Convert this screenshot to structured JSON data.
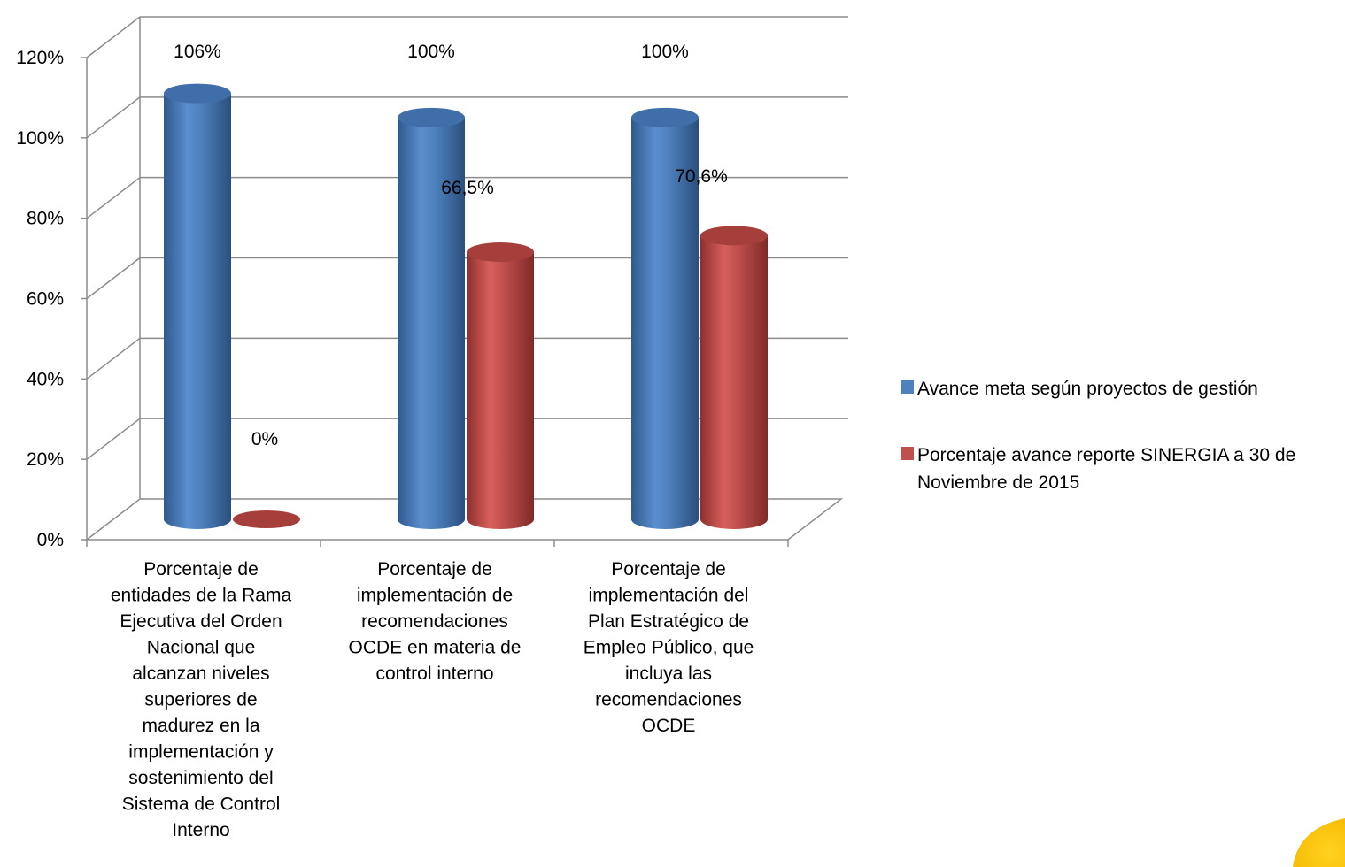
{
  "chart_data": {
    "type": "bar",
    "style": "3d-cylinder",
    "categories": [
      "Porcentaje de entidades de la Rama Ejecutiva del Orden Nacional que alcanzan niveles superiores de madurez en la implementación y sostenimiento del Sistema de Control Interno",
      "Porcentaje de implementación de recomendaciones OCDE en materia de control interno",
      "Porcentaje de implementación del Plan Estratégico de Empleo Público, que incluya las recomendaciones OCDE"
    ],
    "category_lines": [
      [
        "Porcentaje de",
        "entidades de la Rama",
        "Ejecutiva del Orden",
        "Nacional que",
        "alcanzan niveles",
        "superiores de",
        "madurez en la",
        "implementación y",
        "sostenimiento del",
        "Sistema de Control",
        "Interno"
      ],
      [
        "Porcentaje de",
        "implementación de",
        "recomendaciones",
        "OCDE en materia de",
        "control interno"
      ],
      [
        "Porcentaje de",
        "implementación del",
        "Plan Estratégico de",
        "Empleo Público, que",
        "incluya las",
        "recomendaciones",
        "OCDE"
      ]
    ],
    "series": [
      {
        "name": "Avance meta según proyectos de gestión",
        "legend_lines": [
          "Avance meta según proyectos de gestión"
        ],
        "color": "#4F81BD",
        "values": [
          106,
          100,
          100
        ],
        "data_labels": [
          "106%",
          "100%",
          "100%"
        ]
      },
      {
        "name": "Porcentaje avance reporte SINERGIA a 30 de Noviembre de 2015",
        "legend_lines": [
          "Porcentaje avance reporte SINERGIA a 30 de",
          "Noviembre de 2015"
        ],
        "color": "#C0504D",
        "values": [
          0,
          66.5,
          70.6
        ],
        "data_labels": [
          "0%",
          "66,5%",
          "70,6%"
        ]
      }
    ],
    "y_ticks": [
      "0%",
      "20%",
      "40%",
      "60%",
      "80%",
      "100%",
      "120%"
    ],
    "ylim": [
      0,
      120
    ],
    "grid": true,
    "legend_position": "right",
    "title": "",
    "xlabel": "",
    "ylabel": ""
  }
}
